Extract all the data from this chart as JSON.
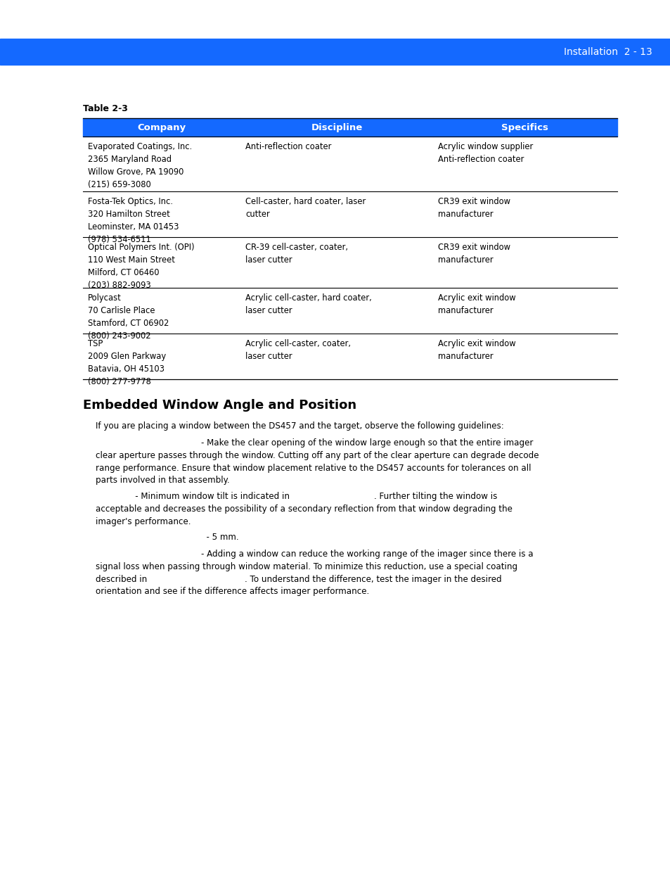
{
  "header_bg": "#1469FF",
  "header_text_color": "#FFFFFF",
  "header_bar_text": "Installation  2 - 13",
  "table_label": "Table 2-3",
  "col_headers": [
    "Company",
    "Discipline",
    "Specifics"
  ],
  "rows": [
    {
      "company": "Evaporated Coatings, Inc.\n2365 Maryland Road\nWillow Grove, PA 19090\n(215) 659-3080",
      "discipline": "Anti-reflection coater",
      "specifics": "Acrylic window supplier\nAnti-reflection coater"
    },
    {
      "company": "Fosta-Tek Optics, Inc.\n320 Hamilton Street\nLeominster, MA 01453\n(978) 534-6511",
      "discipline": "Cell-caster, hard coater, laser\ncutter",
      "specifics": "CR39 exit window\nmanufacturer"
    },
    {
      "company": "Optical Polymers Int. (OPI)\n110 West Main Street\nMilford, CT 06460\n(203) 882-9093",
      "discipline": "CR-39 cell-caster, coater,\nlaser cutter",
      "specifics": "CR39 exit window\nmanufacturer"
    },
    {
      "company": "Polycast\n70 Carlisle Place\nStamford, CT 06902\n(800) 243-9002",
      "discipline": "Acrylic cell-caster, hard coater,\nlaser cutter",
      "specifics": "Acrylic exit window\nmanufacturer"
    },
    {
      "company": "TSP\n2009 Glen Parkway\nBatavia, OH 45103\n(800) 277-9778",
      "discipline": "Acrylic cell-caster, coater,\nlaser cutter",
      "specifics": "Acrylic exit window\nmanufacturer"
    }
  ],
  "section_title": "Embedded Window Angle and Position",
  "para1": "If you are placing a window between the DS457 and the target, observe the following guidelines:",
  "para2_line1": "                                        - Make the clear opening of the window large enough so that the entire imager",
  "para2_line2": "clear aperture passes through the window. Cutting off any part of the clear aperture can degrade decode",
  "para2_line3": "range performance. Ensure that window placement relative to the DS457 accounts for tolerances on all",
  "para2_line4": "parts involved in that assembly.",
  "para3_line1": "               - Minimum window tilt is indicated in                                . Further tilting the window is",
  "para3_line2": "acceptable and decreases the possibility of a secondary reflection from that window degrading the",
  "para3_line3": "imager's performance.",
  "para4": "                                          - 5 mm.",
  "para5_line1": "                                        - Adding a window can reduce the working range of the imager since there is a",
  "para5_line2": "signal loss when passing through window material. To minimize this reduction, use a special coating",
  "para5_line3": "described in                                     . To understand the difference, test the imager in the desired",
  "para5_line4": "orientation and see if the difference affects imager performance."
}
